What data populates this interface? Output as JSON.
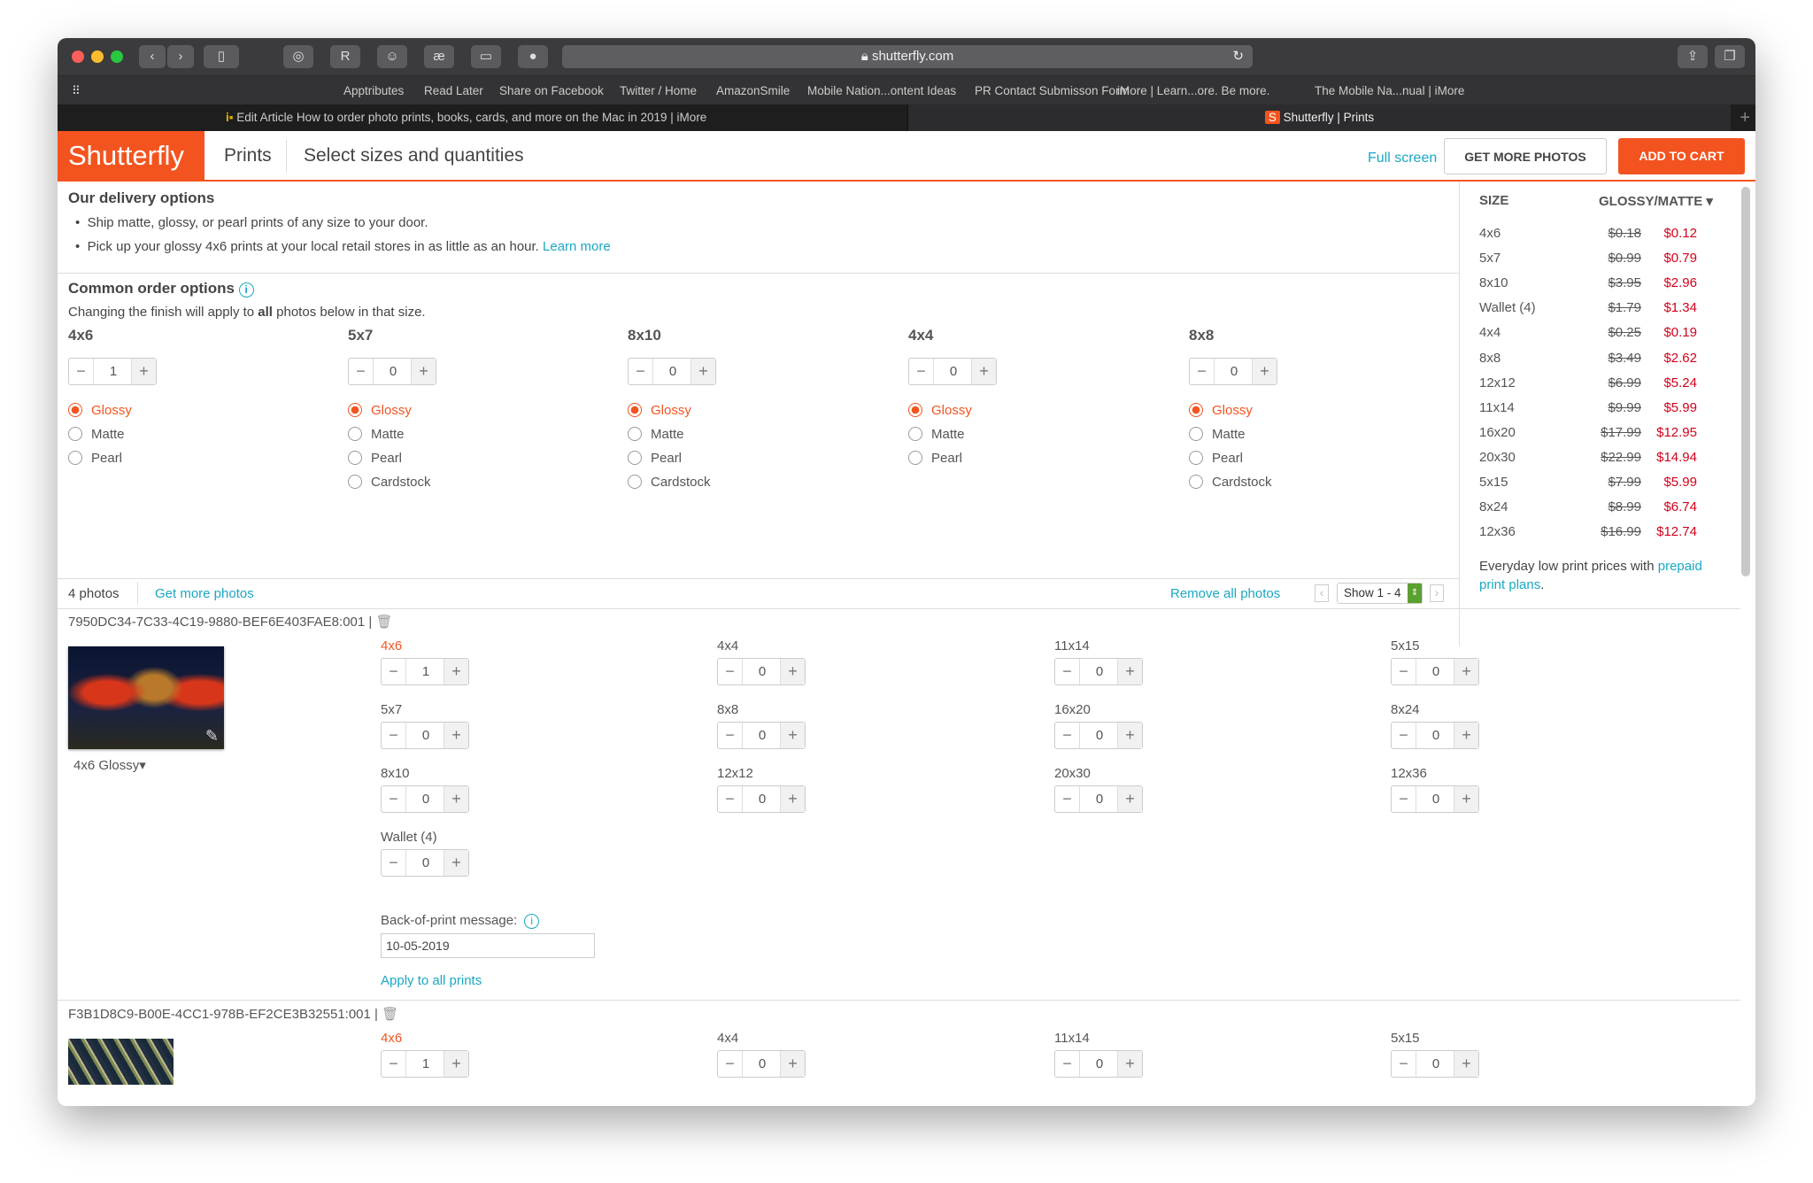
{
  "browser": {
    "url": "shutterfly.com",
    "bookmarks": [
      "Apptributes",
      "Read Later",
      "Share on Facebook",
      "Twitter / Home",
      "AmazonSmile",
      "Mobile Nation...ontent Ideas",
      "PR Contact Submisson Form",
      "iMore | Learn...ore. Be more.",
      "The Mobile Na...nual | iMore"
    ],
    "tabs": [
      {
        "title": "Edit Article How to order photo prints, books, cards, and more on the Mac in 2019 | iMore",
        "active": false
      },
      {
        "title": "Shutterfly | Prints",
        "active": true
      }
    ]
  },
  "header": {
    "logo": "Shutterfly",
    "section": "Prints",
    "title": "Select sizes and quantities",
    "full_screen": "Full screen",
    "get_more": "GET MORE PHOTOS",
    "add_to_cart": "ADD TO CART",
    "accent": "#f3541f"
  },
  "delivery": {
    "title": "Our delivery options",
    "bullet1": "Ship matte, glossy, or pearl prints of any size to your door.",
    "bullet2": "Pick up your glossy 4x6 prints at your local retail stores in as little as an hour.",
    "learn_more": "Learn more"
  },
  "common": {
    "title": "Common order options",
    "note_pre": "Changing the finish will apply to ",
    "note_bold": "all",
    "note_post": " photos below in that size.",
    "columns": [
      {
        "size": "4x6",
        "qty": "1",
        "finishes": [
          "Glossy",
          "Matte",
          "Pearl"
        ],
        "selected": "Glossy"
      },
      {
        "size": "5x7",
        "qty": "0",
        "finishes": [
          "Glossy",
          "Matte",
          "Pearl",
          "Cardstock"
        ],
        "selected": "Glossy"
      },
      {
        "size": "8x10",
        "qty": "0",
        "finishes": [
          "Glossy",
          "Matte",
          "Pearl",
          "Cardstock"
        ],
        "selected": "Glossy"
      },
      {
        "size": "4x4",
        "qty": "0",
        "finishes": [
          "Glossy",
          "Matte",
          "Pearl"
        ],
        "selected": "Glossy"
      },
      {
        "size": "8x8",
        "qty": "0",
        "finishes": [
          "Glossy",
          "Matte",
          "Pearl",
          "Cardstock"
        ],
        "selected": "Glossy"
      }
    ]
  },
  "pricing": {
    "col_size": "SIZE",
    "col_finish": "GLOSSY/MATTE",
    "rows": [
      [
        "4x6",
        "$0.18",
        "$0.12"
      ],
      [
        "5x7",
        "$0.99",
        "$0.79"
      ],
      [
        "8x10",
        "$3.95",
        "$2.96"
      ],
      [
        "Wallet (4)",
        "$1.79",
        "$1.34"
      ],
      [
        "4x4",
        "$0.25",
        "$0.19"
      ],
      [
        "8x8",
        "$3.49",
        "$2.62"
      ],
      [
        "12x12",
        "$6.99",
        "$5.24"
      ],
      [
        "11x14",
        "$9.99",
        "$5.99"
      ],
      [
        "16x20",
        "$17.99",
        "$12.95"
      ],
      [
        "20x30",
        "$22.99",
        "$14.94"
      ],
      [
        "5x15",
        "$7.99",
        "$5.99"
      ],
      [
        "8x24",
        "$8.99",
        "$6.74"
      ],
      [
        "12x36",
        "$16.99",
        "$12.74"
      ]
    ],
    "footer_pre": "Everyday low print prices with ",
    "footer_link": "prepaid print plans",
    "footer_post": "."
  },
  "photobar": {
    "count": "4 photos",
    "get_more": "Get more photos",
    "remove_all": "Remove all photos",
    "show": "Show 1 - 4"
  },
  "photos": [
    {
      "id": "7950DC34-7C33-4C19-9880-BEF6E403FAE8:001",
      "finish": "4x6 Glossy",
      "sizes": [
        [
          "4x6",
          "1"
        ],
        [
          "4x4",
          "0"
        ],
        [
          "11x14",
          "0"
        ],
        [
          "5x15",
          "0"
        ],
        [
          "5x7",
          "0"
        ],
        [
          "8x8",
          "0"
        ],
        [
          "16x20",
          "0"
        ],
        [
          "8x24",
          "0"
        ],
        [
          "8x10",
          "0"
        ],
        [
          "12x12",
          "0"
        ],
        [
          "20x30",
          "0"
        ],
        [
          "12x36",
          "0"
        ],
        [
          "Wallet (4)",
          "0"
        ]
      ],
      "back_label": "Back-of-print message:",
      "back_value": "10-05-2019",
      "apply": "Apply to all prints"
    },
    {
      "id": "F3B1D8C9-B00E-4CC1-978B-EF2CE3B32551:001",
      "sizes": [
        [
          "4x6",
          "1"
        ],
        [
          "4x4",
          "0"
        ],
        [
          "11x14",
          "0"
        ],
        [
          "5x15",
          "0"
        ]
      ]
    }
  ]
}
